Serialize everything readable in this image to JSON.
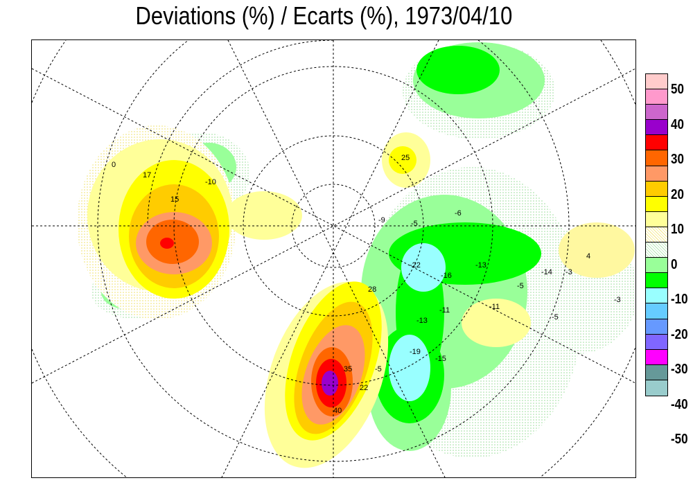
{
  "title": "Deviations (%) / Ecarts (%), 1973/04/10",
  "colorbar": {
    "colors": [
      "#ffcccc",
      "#ff99cc",
      "#cc66cc",
      "#9900cc",
      "#ff0000",
      "#ff6600",
      "#ff9966",
      "#ffcc00",
      "#ffff00",
      "#ffff99",
      "#fff8c0",
      "#e6f0e0",
      "#99ff99",
      "#00ff00",
      "#99ffff",
      "#66ccff",
      "#6699ff",
      "#8066ff",
      "#ff00ff",
      "#669999",
      "#99cccc"
    ],
    "labels": [
      "50",
      "40",
      "30",
      "20",
      "10",
      "0",
      "-10",
      "-20",
      "-30",
      "-40",
      "-50"
    ]
  },
  "contour_labels": [
    "17",
    "15",
    "-10",
    "0",
    "-22",
    "-16",
    "-13",
    "-11",
    "-13",
    "-19",
    "-15",
    "35",
    "22",
    "40",
    "-5",
    "28",
    "-5",
    "-6",
    "-9",
    "25",
    "-14",
    "-5",
    "-3",
    "4",
    "-11",
    "-5",
    "-3"
  ]
}
